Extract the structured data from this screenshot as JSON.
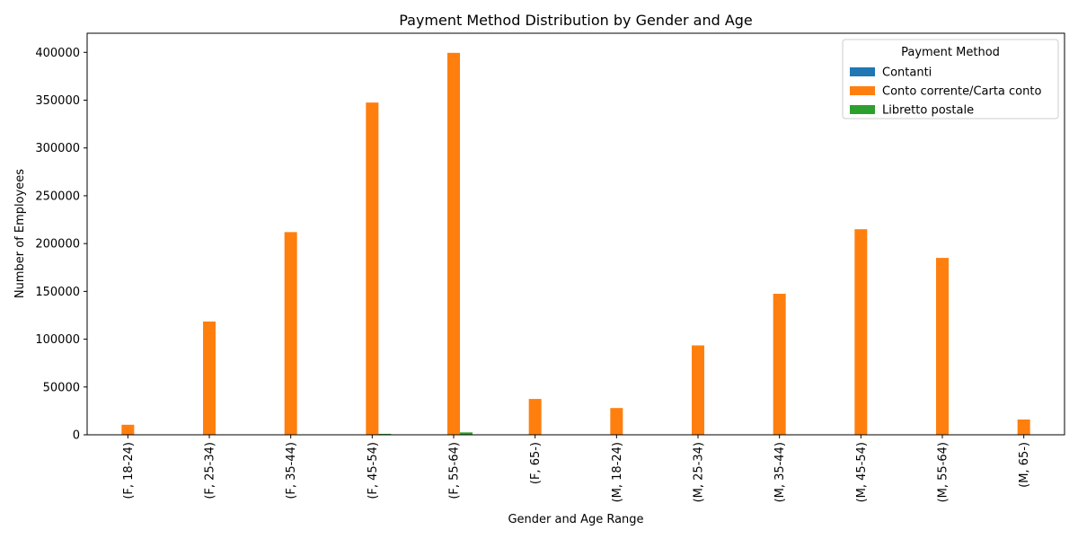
{
  "chart_data": {
    "type": "bar",
    "title": "Payment Method Distribution by Gender and Age",
    "xlabel": "Gender and Age Range",
    "ylabel": "Number of Employees",
    "ylim": [
      0,
      420000
    ],
    "yticks": [
      0,
      50000,
      100000,
      150000,
      200000,
      250000,
      300000,
      350000,
      400000
    ],
    "categories": [
      "(F, 18-24)",
      "(F, 25-34)",
      "(F, 35-44)",
      "(F, 45-54)",
      "(F, 55-64)",
      "(F, 65-)",
      "(M, 18-24)",
      "(M, 25-34)",
      "(M, 35-44)",
      "(M, 45-54)",
      "(M, 55-64)",
      "(M, 65-)"
    ],
    "legend_title": "Payment Method",
    "legend_position": "top-right",
    "series": [
      {
        "name": "Contanti",
        "color": "#1f77b4",
        "values": [
          0,
          0,
          0,
          50,
          100,
          0,
          0,
          0,
          0,
          0,
          0,
          0
        ]
      },
      {
        "name": "Conto corrente/Carta conto",
        "color": "#ff7f0e",
        "values": [
          10500,
          118500,
          212000,
          347500,
          399500,
          37500,
          28000,
          93500,
          147500,
          215000,
          185000,
          16000
        ]
      },
      {
        "name": "Libretto postale",
        "color": "#2ca02c",
        "values": [
          0,
          0,
          0,
          1000,
          2500,
          0,
          0,
          0,
          0,
          0,
          0,
          0
        ]
      }
    ]
  }
}
